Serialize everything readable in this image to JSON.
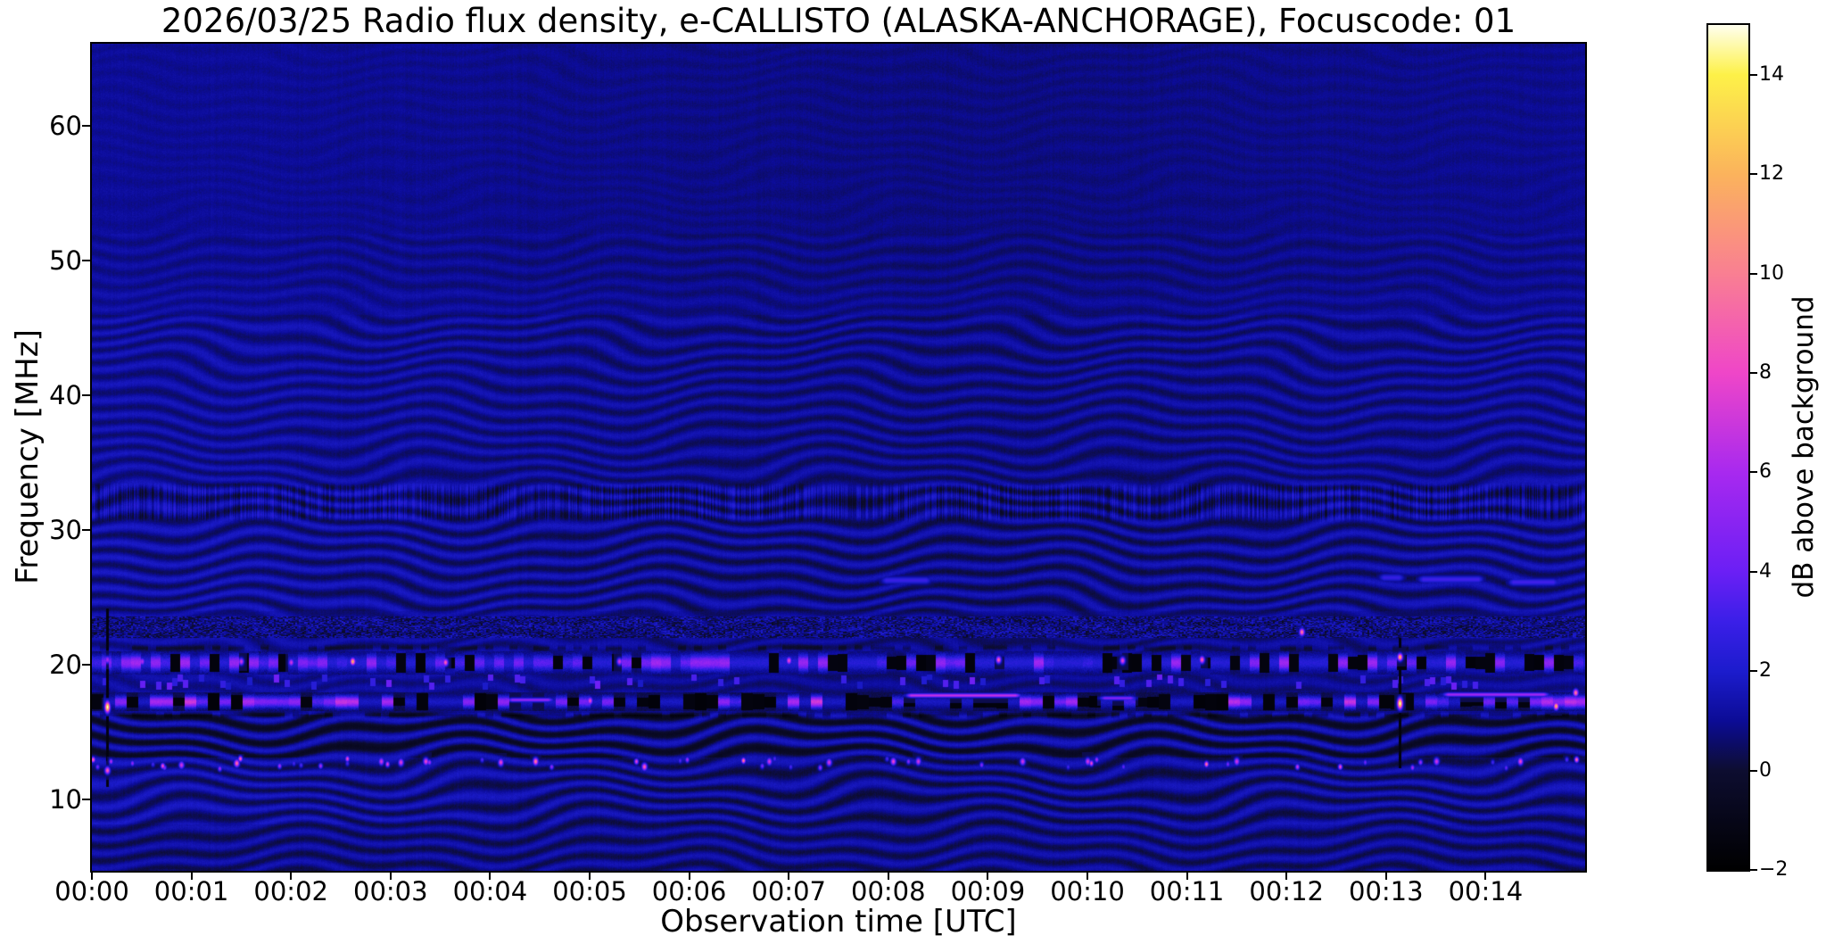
{
  "chart_data": {
    "type": "heatmap",
    "title": "2026/03/25  Radio flux density, e-CALLISTO (ALASKA-ANCHORAGE), Focuscode: 01",
    "xlabel": "Observation time [UTC]",
    "ylabel": "Frequency [MHz]",
    "colorbar_label": "dB above background",
    "x_ticks": [
      "00:00",
      "00:01",
      "00:02",
      "00:03",
      "00:04",
      "00:05",
      "00:06",
      "00:07",
      "00:08",
      "00:09",
      "00:10",
      "00:11",
      "00:12",
      "00:13",
      "00:14"
    ],
    "x_range_minutes": [
      0,
      15
    ],
    "y_ticks": [
      60,
      50,
      40,
      30,
      20,
      10
    ],
    "y_range_mhz": [
      4.8,
      66.1
    ],
    "colorbar_ticks": [
      {
        "v": 14,
        "label": "14"
      },
      {
        "v": 12,
        "label": "12"
      },
      {
        "v": 10,
        "label": "10"
      },
      {
        "v": 8,
        "label": "8"
      },
      {
        "v": 6,
        "label": "6"
      },
      {
        "v": 4,
        "label": "4"
      },
      {
        "v": 2,
        "label": "2"
      },
      {
        "v": 0,
        "label": "0"
      },
      {
        "v": -2,
        "label": "−2"
      }
    ],
    "colorbar_range": [
      -2,
      15
    ],
    "grid": false,
    "colormap": {
      "name": "gnuplot2-like",
      "stops": [
        {
          "v": -2,
          "c": "#000000"
        },
        {
          "v": 0,
          "c": "#0d0d30"
        },
        {
          "v": 1,
          "c": "#0c0c96"
        },
        {
          "v": 2,
          "c": "#1c1ccd"
        },
        {
          "v": 3,
          "c": "#3b1fe8"
        },
        {
          "v": 4,
          "c": "#6b1ff5"
        },
        {
          "v": 6,
          "c": "#a829ef"
        },
        {
          "v": 8,
          "c": "#ef46c8"
        },
        {
          "v": 10,
          "c": "#f97f92"
        },
        {
          "v": 12,
          "c": "#fbb35c"
        },
        {
          "v": 14,
          "c": "#fdf148"
        },
        {
          "v": 15,
          "c": "#ffffee"
        }
      ]
    },
    "noise_seed": 20260325,
    "features": {
      "background_level_db": 1.0,
      "bands": [
        {
          "name": "rfi-20MHz",
          "f_center": 20.2,
          "f_halfwidth": 0.8,
          "style": "blocky-bright"
        },
        {
          "name": "rfi-17MHz",
          "f_center": 17.3,
          "f_halfwidth": 0.62,
          "style": "dark-with-bright-streaks"
        },
        {
          "name": "speckle-23MHz",
          "f_lo": 22.05,
          "f_hi": 23.65,
          "style": "speckle"
        },
        {
          "name": "stripes-32MHz",
          "f_lo": 30.6,
          "f_hi": 33.6,
          "style": "vertical-stripes"
        },
        {
          "name": "dashes-19MHz",
          "f_lo": 18.2,
          "f_hi": 19.35,
          "style": "sparse-dashes"
        },
        {
          "name": "dots-12.7MHz",
          "f_lo": 12.3,
          "f_hi": 13.1,
          "style": "bright-dots",
          "count": 46
        }
      ],
      "hot_spots": [
        [
          0.155,
          16.9,
          15
        ],
        [
          0.155,
          20.4,
          6
        ],
        [
          0.155,
          12.2,
          9
        ],
        [
          0.5,
          20.3,
          6
        ],
        [
          0.9,
          12.6,
          7
        ],
        [
          1.45,
          12.75,
          9.5
        ],
        [
          1.5,
          20.3,
          7
        ],
        [
          2.0,
          20.2,
          7
        ],
        [
          2.62,
          20.3,
          12
        ],
        [
          2.9,
          12.9,
          7
        ],
        [
          3.1,
          12.8,
          7.5
        ],
        [
          3.35,
          12.85,
          8
        ],
        [
          3.55,
          20.25,
          9
        ],
        [
          4.1,
          12.8,
          8
        ],
        [
          4.45,
          12.85,
          10
        ],
        [
          5.0,
          17.35,
          8
        ],
        [
          5.3,
          20.3,
          7
        ],
        [
          5.55,
          12.5,
          9
        ],
        [
          6.8,
          12.9,
          7
        ],
        [
          7.0,
          20.35,
          8
        ],
        [
          7.4,
          12.8,
          7
        ],
        [
          8.05,
          12.9,
          8
        ],
        [
          8.3,
          12.85,
          7
        ],
        [
          9.1,
          20.4,
          9
        ],
        [
          9.35,
          12.9,
          7
        ],
        [
          10.0,
          12.85,
          7
        ],
        [
          10.35,
          20.35,
          8
        ],
        [
          11.15,
          20.45,
          9
        ],
        [
          11.5,
          12.9,
          7
        ],
        [
          12.15,
          22.5,
          10
        ],
        [
          13.14,
          20.6,
          12
        ],
        [
          13.14,
          17.15,
          15
        ],
        [
          13.5,
          12.9,
          7
        ],
        [
          14.35,
          12.9,
          8
        ],
        [
          14.7,
          16.95,
          12
        ],
        [
          14.9,
          17.95,
          10
        ]
      ],
      "streaks": [
        [
          8.15,
          9.35,
          17.8,
          6.5
        ],
        [
          13.55,
          14.65,
          17.85,
          5.5
        ],
        [
          4.15,
          4.65,
          17.45,
          5.0
        ],
        [
          10.1,
          10.5,
          17.6,
          4.5
        ],
        [
          7.9,
          8.45,
          26.3,
          2.6
        ],
        [
          12.9,
          13.2,
          26.5,
          2.5
        ],
        [
          13.3,
          14.0,
          26.4,
          2.8
        ],
        [
          14.2,
          14.75,
          26.2,
          2.8
        ]
      ],
      "vertical_artifacts": [
        {
          "t": 0.155,
          "f_lo": 11.0,
          "f_hi": 24.2
        },
        {
          "t": 13.14,
          "f_lo": 12.4,
          "f_hi": 22.0
        }
      ]
    }
  }
}
